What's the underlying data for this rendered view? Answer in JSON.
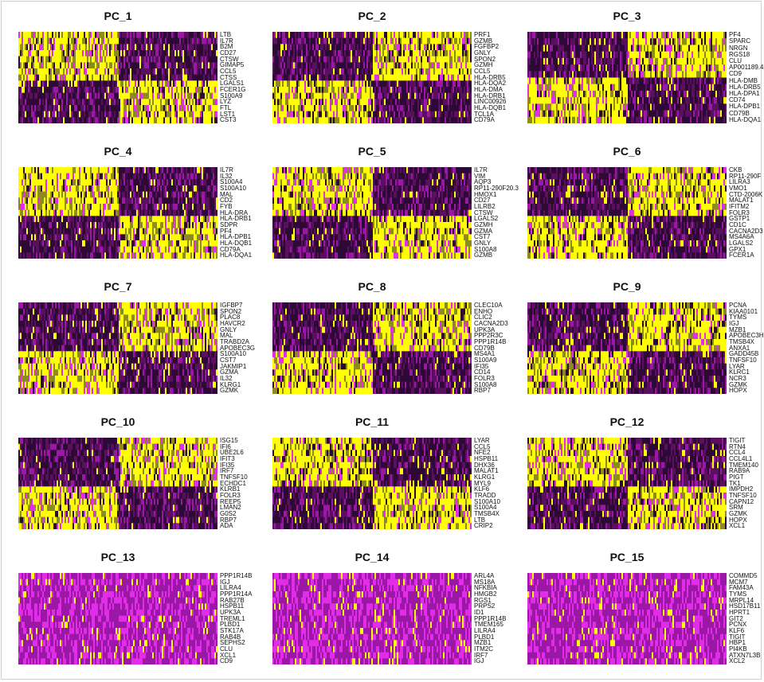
{
  "colors": {
    "low": "#000000",
    "dark": "#2c0a35",
    "mid": "#5a0f5f",
    "purple": "#9b17a6",
    "magenta": "#e22de8",
    "yellow": "#ffff00",
    "olive": "#8c8c1e"
  },
  "chart_data": [
    {
      "type": "heatmap",
      "title": "PC_1",
      "split": "left",
      "genes": [
        "LTB",
        "IL7R",
        "B2M",
        "CD27",
        "CTSW",
        "GIMAP5",
        "CCL5",
        "CTSS",
        "LGALS1",
        "FCER1G",
        "S100A9",
        "LYZ",
        "FTL",
        "LST1",
        "CST3"
      ]
    },
    {
      "type": "heatmap",
      "title": "PC_2",
      "split": "right",
      "genes": [
        "PRF1",
        "GZMB",
        "FGFBP2",
        "GNLY",
        "SPON2",
        "GZMH",
        "CCL5",
        "HLA-DRB5",
        "HLA-DQA2",
        "HLA-DMA",
        "HLA-DRB1",
        "LINC00926",
        "HLA-DQB1",
        "TCL1A",
        "CD79A"
      ]
    },
    {
      "type": "heatmap",
      "title": "PC_3",
      "split": "right",
      "genes": [
        "PF4",
        "SPARC",
        "NRGN",
        "RGS18",
        "CLU",
        "AP001189.4",
        "CD9",
        "HLA-DMB",
        "HLA-DRB5",
        "HLA-DPA1",
        "CD74",
        "HLA-DPB1",
        "CD79B",
        "HLA-DQA1"
      ]
    },
    {
      "type": "heatmap",
      "title": "PC_4",
      "split": "left",
      "genes": [
        "IL7R",
        "IL32",
        "S100A4",
        "S100A10",
        "MAL",
        "CD2",
        "FYB",
        "HLA-DRA",
        "HLA-DRB1",
        "SDPR",
        "PF4",
        "HLA-DPB1",
        "HLA-DQB1",
        "CD79A",
        "HLA-DQA1"
      ]
    },
    {
      "type": "heatmap",
      "title": "PC_5",
      "split": "left",
      "genes": [
        "IL7R",
        "VIM",
        "AQP3",
        "RP11-290F20.3",
        "HMOX1",
        "CD27",
        "LILRB2",
        "CTSW",
        "LGALS2",
        "GZMH",
        "GZMA",
        "CST7",
        "GNLY",
        "S100A8",
        "GZMB"
      ]
    },
    {
      "type": "heatmap",
      "title": "PC_6",
      "split": "right",
      "genes": [
        "CKB",
        "RP11-290F",
        "LILRA3",
        "VMO1",
        "CTD-2006K",
        "MALAT1",
        "IFITM2",
        "FOLR3",
        "GSTP1",
        "CD1C",
        "CACNA2D3",
        "MS4A6A",
        "LGALS2",
        "GPX1",
        "FCER1A"
      ]
    },
    {
      "type": "heatmap",
      "title": "PC_7",
      "split": "right",
      "genes": [
        "IGFBP7",
        "SPON2",
        "PLAC8",
        "HAVCR2",
        "GNLY",
        "MAL",
        "TRABD2A",
        "APOBEC3G",
        "S100A10",
        "CST7",
        "JAKMIP1",
        "GZMA",
        "IL32",
        "KLRG1",
        "GZMK"
      ]
    },
    {
      "type": "heatmap",
      "title": "PC_8",
      "split": "right",
      "genes": [
        "CLEC10A",
        "ENHO",
        "CLIC2",
        "CACNA2D3",
        "UPK3A",
        "PPP2R3C",
        "PPP1R14B",
        "CD79B",
        "MS4A1",
        "S100A9",
        "IFI35",
        "CD14",
        "FOLR3",
        "S100A8",
        "RBP7"
      ]
    },
    {
      "type": "heatmap",
      "title": "PC_9",
      "split": "right",
      "genes": [
        "PCNA",
        "KIAA0101",
        "TYMS",
        "IGJ",
        "MZB1",
        "APOBEC3H",
        "TMSB4X",
        "ANXA1",
        "GADD45B",
        "TNFSF10",
        "LYAR",
        "KLRC1",
        "NCR3",
        "GZMK",
        "HOPX"
      ]
    },
    {
      "type": "heatmap",
      "title": "PC_10",
      "split": "right",
      "genes": [
        "ISG15",
        "IFI6",
        "UBE2L6",
        "IFIT3",
        "IFI35",
        "IRF7",
        "TNFSF10",
        "ECHDC1",
        "KLRB1",
        "FOLR3",
        "REEP5",
        "LMAN2",
        "G0S2",
        "RBP7",
        "ADA"
      ]
    },
    {
      "type": "heatmap",
      "title": "PC_11",
      "split": "left",
      "genes": [
        "LYAR",
        "CCL5",
        "NFE2",
        "HSPB11",
        "DHX36",
        "MALAT1",
        "KLRG1",
        "MYL9",
        "KLF6",
        "TRADD",
        "S100A10",
        "S100A4",
        "TMSB4X",
        "LTB",
        "CRIP2"
      ]
    },
    {
      "type": "heatmap",
      "title": "PC_12",
      "split": "left",
      "genes": [
        "TIGIT",
        "RTN4",
        "CCL4",
        "CCL4L1",
        "TMEM140",
        "RAB9A",
        "PIGT",
        "TK1",
        "IMPDH2",
        "TNFSF10",
        "CAPN12",
        "SRM",
        "GZMK",
        "HOPX",
        "XCL1"
      ]
    },
    {
      "type": "heatmap",
      "title": "PC_13",
      "split": "mag",
      "genes": [
        "PPP1R14B",
        "IGJ",
        "LILRA4",
        "PPP1R14A",
        "RAB27B",
        "HSPB11",
        "UPK3A",
        "TREML1",
        "PLBD1",
        "STK17A",
        "RAB4B",
        "SEPHS2",
        "CLU",
        "XCL1",
        "CD9"
      ]
    },
    {
      "type": "heatmap",
      "title": "PC_14",
      "split": "mag",
      "genes": [
        "ARL4A",
        "MS18A",
        "NFKBIA",
        "HMGB2",
        "RGS1",
        "PRPS2",
        "ID1",
        "PPP1R14B",
        "TMEM165",
        "LILRA4",
        "PLBD1",
        "MZB1",
        "ITM2C",
        "IRF7",
        "IGJ"
      ]
    },
    {
      "type": "heatmap",
      "title": "PC_15",
      "split": "mag",
      "genes": [
        "COMMD5",
        "MCM7",
        "FAM43A",
        "TYMS",
        "MRPL14",
        "HSD17B11",
        "HPRT1",
        "GIT2",
        "PCNX",
        "KLF6",
        "TIGIT",
        "HBP1",
        "PI4KB",
        "ATXN7L3B",
        "XCL2"
      ]
    }
  ]
}
